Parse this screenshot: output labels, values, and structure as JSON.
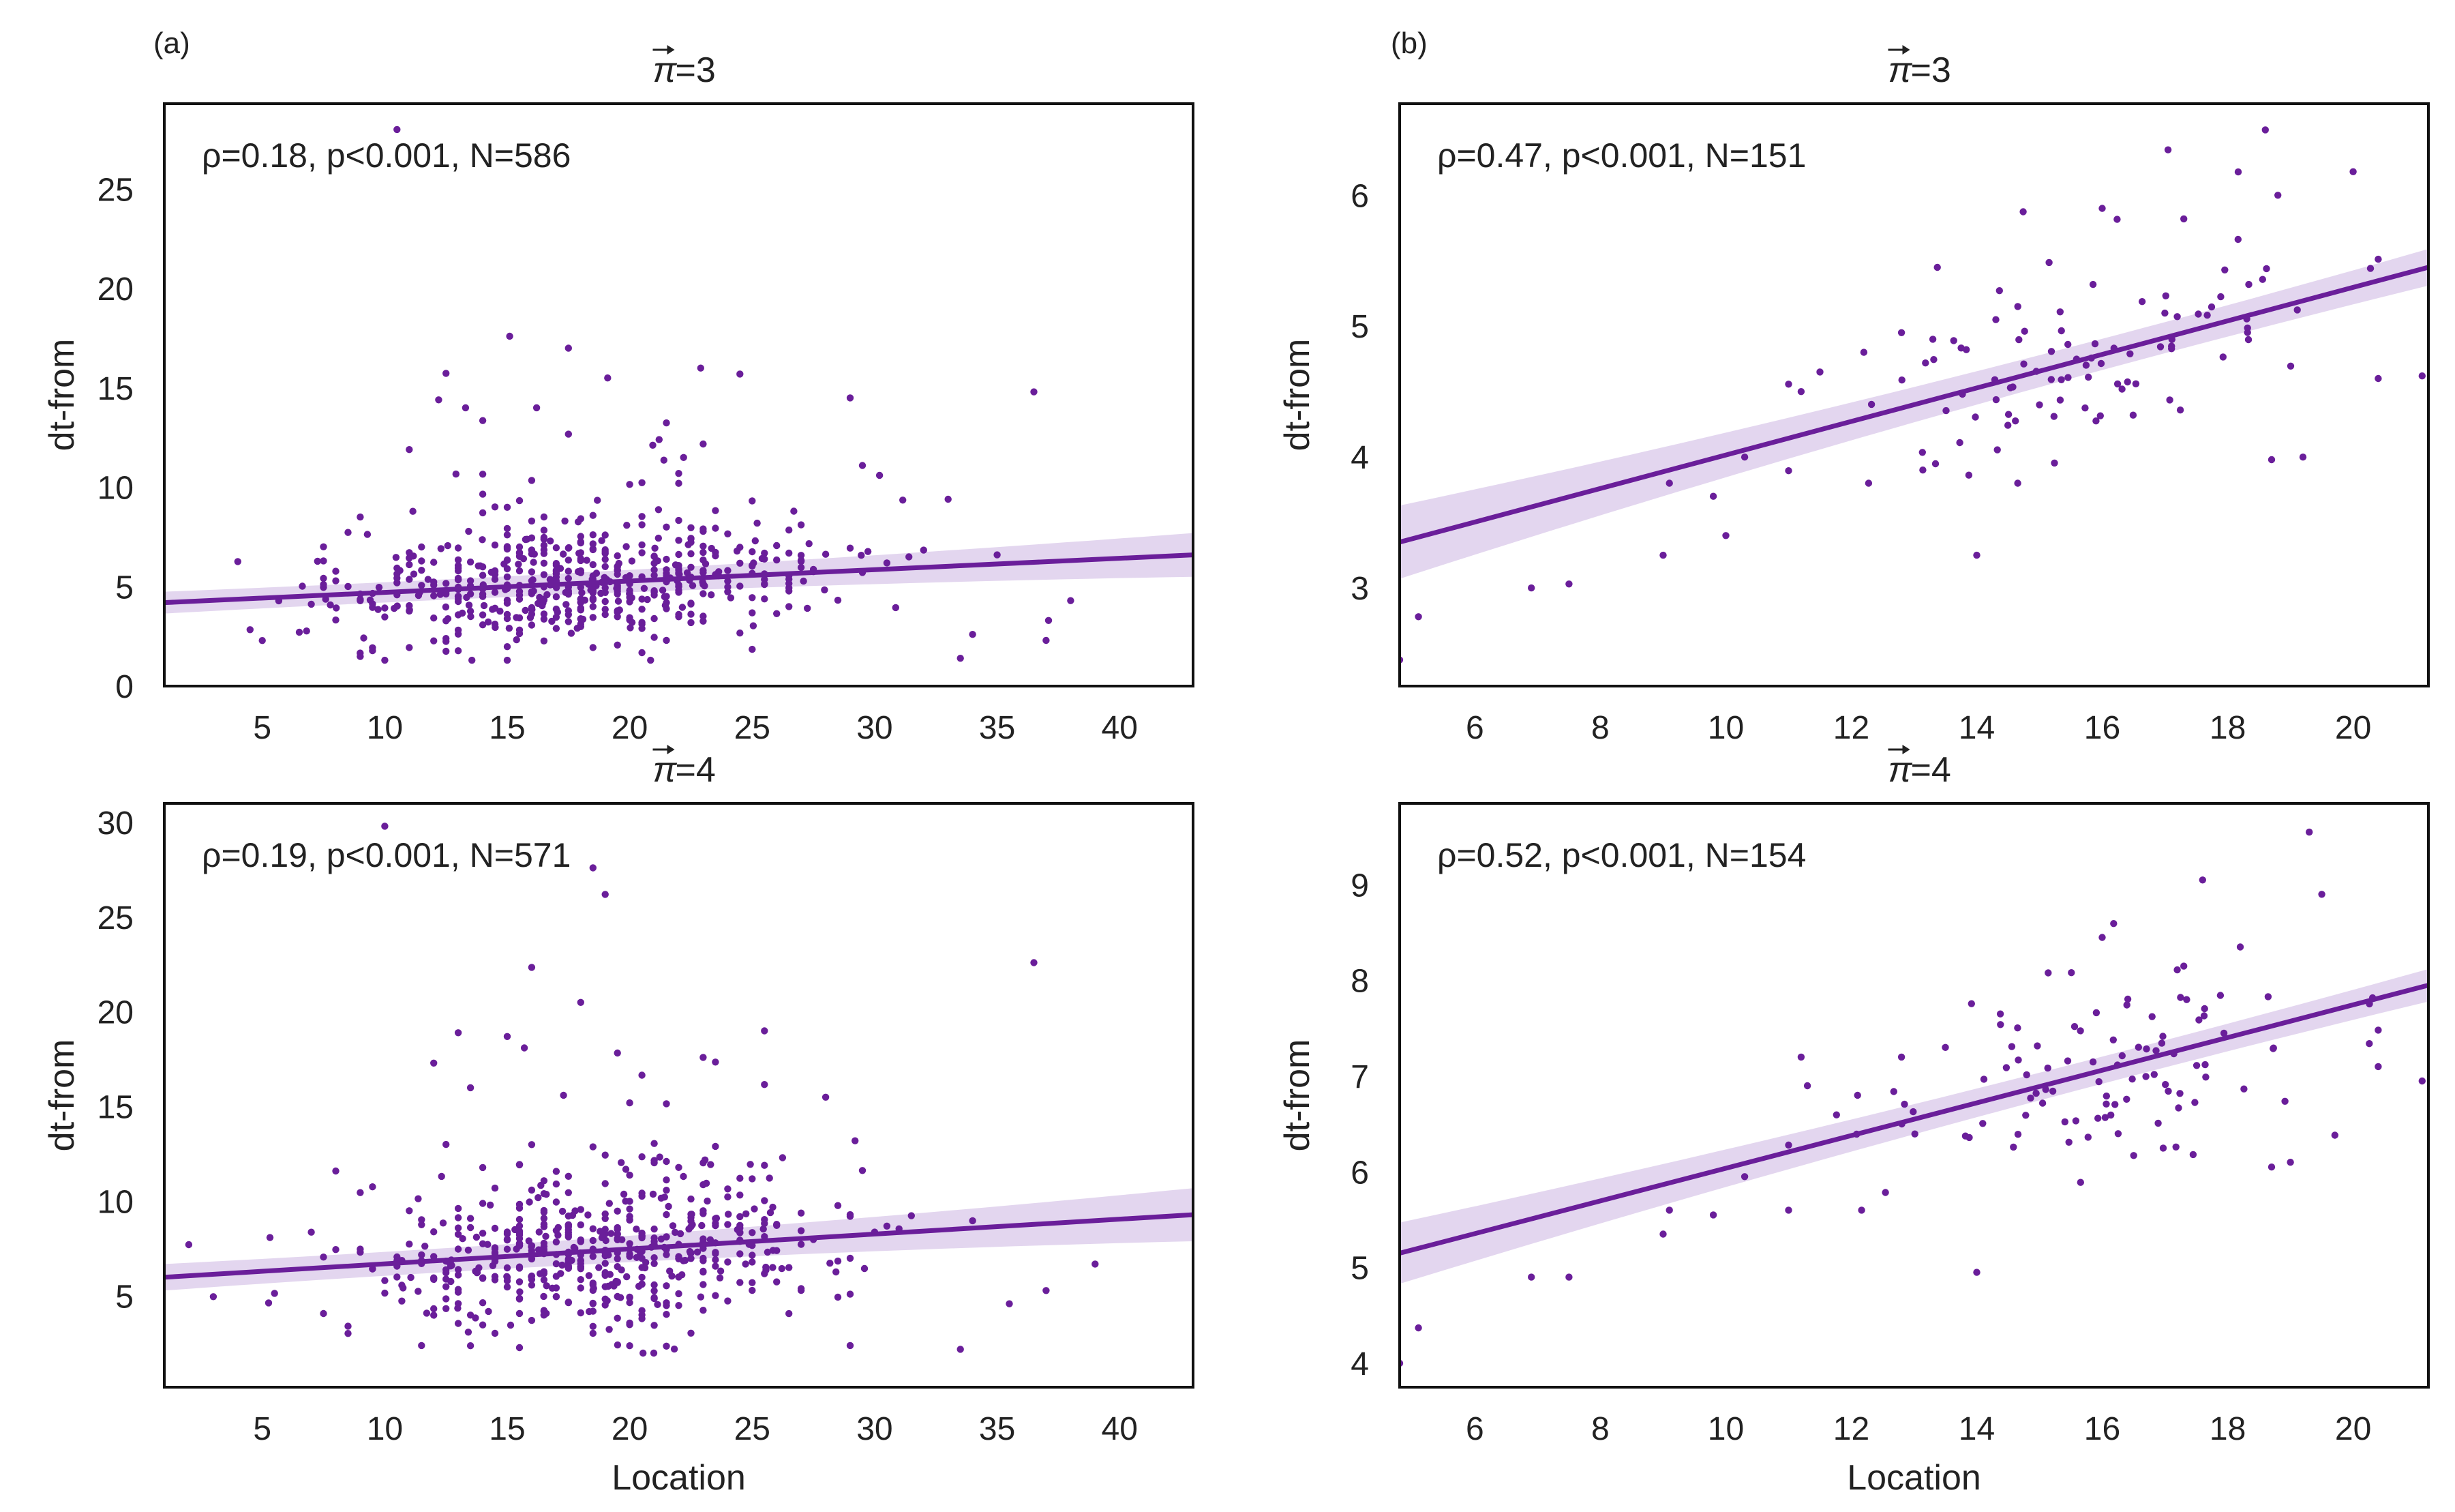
{
  "colors": {
    "point": "#6a1e9a",
    "line": "#6a1e9a",
    "band": "#d9c8ea",
    "frame": "#111111",
    "text": "#222222"
  },
  "panel_labels": [
    "(a)",
    "(b)"
  ],
  "chart_data": [
    {
      "id": "a-top",
      "type": "scatter",
      "title_vec": "π",
      "title_eq": "=3",
      "stat": "ρ=0.18, p<0.001, N=586",
      "xlabel": "",
      "ylabel": "dt-from",
      "xlim": [
        1,
        43
      ],
      "ylim": [
        0,
        29.3
      ],
      "xticks": [
        5,
        10,
        15,
        20,
        25,
        30,
        35,
        40
      ],
      "yticks": [
        0,
        5,
        10,
        15,
        20,
        25
      ],
      "fit": {
        "x": [
          1,
          43
        ],
        "y": [
          4.2,
          6.6
        ],
        "ci_ends": [
          0.55,
          1.1
        ],
        "ci_mid": 0.35
      },
      "cloud": {
        "n": 586,
        "xmean": 18,
        "xsd": 5,
        "xmin": 1,
        "xmax": 38,
        "ymean": 5.2,
        "ysd": 1.6,
        "ymin": 1.3,
        "seed": 11
      },
      "points": [
        [
          10.5,
          28.0
        ],
        [
          15.1,
          17.6
        ],
        [
          17.5,
          17.0
        ],
        [
          19.1,
          15.5
        ],
        [
          22.9,
          16.0
        ],
        [
          24.5,
          15.7
        ],
        [
          36.5,
          14.8
        ],
        [
          29.0,
          14.5
        ],
        [
          12.2,
          14.4
        ],
        [
          13.3,
          14.0
        ],
        [
          16.2,
          14.0
        ],
        [
          11.0,
          11.9
        ],
        [
          21.2,
          12.4
        ],
        [
          22.2,
          11.5
        ],
        [
          29.5,
          11.1
        ],
        [
          30.2,
          10.6
        ],
        [
          33.0,
          9.4
        ],
        [
          26.7,
          8.8
        ],
        [
          31.4,
          6.5
        ],
        [
          35.0,
          6.6
        ],
        [
          38.0,
          4.3
        ],
        [
          37.1,
          3.3
        ],
        [
          37.0,
          2.3
        ],
        [
          33.5,
          1.4
        ],
        [
          34.0,
          2.6
        ]
      ]
    },
    {
      "id": "a-bottom",
      "type": "scatter",
      "title_vec": "π",
      "title_eq": "=4",
      "stat": "ρ=0.19, p<0.001, N=571",
      "xlabel": "Location",
      "ylabel": "dt-from",
      "xlim": [
        1,
        43
      ],
      "ylim": [
        0.2,
        31
      ],
      "xticks": [
        5,
        10,
        15,
        20,
        25,
        30,
        35,
        40
      ],
      "yticks": [
        5,
        10,
        15,
        20,
        25,
        30
      ],
      "fit": {
        "x": [
          1,
          43
        ],
        "y": [
          6.0,
          9.3
        ],
        "ci_ends": [
          0.7,
          1.4
        ],
        "ci_mid": 0.4
      },
      "cloud": {
        "n": 571,
        "xmean": 18,
        "xsd": 5,
        "xmin": 1,
        "xmax": 38,
        "ymean": 7.2,
        "ysd": 2.0,
        "ymin": 2.0,
        "seed": 23
      },
      "points": [
        [
          10.0,
          29.8
        ],
        [
          18.5,
          27.6
        ],
        [
          19.0,
          26.2
        ],
        [
          36.5,
          22.6
        ],
        [
          18.0,
          20.5
        ],
        [
          13.0,
          18.9
        ],
        [
          15.0,
          18.7
        ],
        [
          25.5,
          19.0
        ],
        [
          15.7,
          18.1
        ],
        [
          23.0,
          17.6
        ],
        [
          12.0,
          17.3
        ],
        [
          13.5,
          16.0
        ],
        [
          17.3,
          15.6
        ],
        [
          20.0,
          15.2
        ],
        [
          28.0,
          15.5
        ],
        [
          29.2,
          13.2
        ],
        [
          16.0,
          13.0
        ],
        [
          37.0,
          5.3
        ],
        [
          35.5,
          4.6
        ],
        [
          39.0,
          6.7
        ],
        [
          33.5,
          2.2
        ],
        [
          29.0,
          2.4
        ]
      ]
    },
    {
      "id": "b-top",
      "type": "scatter",
      "title_vec": "π",
      "title_eq": "=3",
      "stat": "ρ=0.47, p<0.001, N=151",
      "xlabel": "",
      "ylabel": "dt-from",
      "xlim": [
        4.8,
        21.2
      ],
      "ylim": [
        2.25,
        6.7
      ],
      "xticks": [
        6,
        8,
        10,
        12,
        14,
        16,
        18,
        20
      ],
      "yticks": [
        3,
        4,
        5,
        6
      ],
      "fit": {
        "x": [
          4.8,
          21.2
        ],
        "y": [
          3.35,
          5.45
        ],
        "ci_ends": [
          0.28,
          0.14
        ],
        "ci_mid": 0.06
      },
      "cloud": {
        "n": 120,
        "xmean": 15.8,
        "xsd": 2.2,
        "xmin": 11,
        "xmax": 20.4,
        "ymean": 4.7,
        "ysd": 0.38,
        "ymin": 3.8,
        "seed": 37
      },
      "points": [
        [
          4.8,
          2.45
        ],
        [
          5.1,
          2.78
        ],
        [
          6.9,
          3.0
        ],
        [
          7.5,
          3.03
        ],
        [
          9.0,
          3.25
        ],
        [
          9.1,
          3.8
        ],
        [
          9.8,
          3.7
        ],
        [
          10.0,
          3.4
        ],
        [
          10.3,
          4.0
        ],
        [
          14.0,
          3.25
        ],
        [
          18.6,
          6.5
        ],
        [
          20.0,
          6.18
        ],
        [
          18.8,
          6.0
        ],
        [
          16.0,
          5.9
        ],
        [
          17.3,
          5.82
        ],
        [
          21.1,
          4.62
        ],
        [
          20.4,
          4.6
        ],
        [
          19.2,
          4.0
        ],
        [
          18.7,
          3.98
        ],
        [
          12.2,
          4.8
        ],
        [
          11.5,
          4.65
        ],
        [
          11.2,
          4.5
        ],
        [
          12.8,
          4.95
        ],
        [
          13.3,
          4.9
        ]
      ]
    },
    {
      "id": "b-bottom",
      "type": "scatter",
      "title_vec": "π",
      "title_eq": "=4",
      "stat": "ρ=0.52, p<0.001, N=154",
      "xlabel": "Location",
      "ylabel": "dt-from",
      "xlim": [
        4.8,
        21.2
      ],
      "ylim": [
        3.75,
        9.85
      ],
      "xticks": [
        6,
        8,
        10,
        12,
        14,
        16,
        18,
        20
      ],
      "yticks": [
        4,
        5,
        6,
        7,
        8,
        9
      ],
      "fit": {
        "x": [
          4.8,
          21.2
        ],
        "y": [
          5.15,
          7.95
        ],
        "ci_ends": [
          0.32,
          0.17
        ],
        "ci_mid": 0.07
      },
      "cloud": {
        "n": 125,
        "xmean": 15.8,
        "xsd": 2.2,
        "xmin": 11,
        "xmax": 20.4,
        "ymean": 7.0,
        "ysd": 0.55,
        "ymin": 5.6,
        "seed": 53
      },
      "points": [
        [
          4.8,
          4.0
        ],
        [
          5.1,
          4.37
        ],
        [
          6.9,
          4.9
        ],
        [
          7.5,
          4.9
        ],
        [
          9.0,
          5.35
        ],
        [
          9.1,
          5.6
        ],
        [
          9.8,
          5.55
        ],
        [
          10.3,
          5.95
        ],
        [
          14.0,
          4.95
        ],
        [
          19.3,
          9.55
        ],
        [
          19.5,
          8.9
        ],
        [
          17.6,
          9.05
        ],
        [
          18.2,
          8.35
        ],
        [
          16.0,
          8.45
        ],
        [
          17.3,
          8.15
        ],
        [
          21.1,
          6.95
        ],
        [
          20.4,
          7.1
        ],
        [
          19.0,
          6.1
        ],
        [
          18.7,
          6.05
        ],
        [
          11.2,
          7.2
        ],
        [
          11.3,
          6.9
        ],
        [
          12.1,
          6.8
        ],
        [
          12.8,
          7.2
        ],
        [
          13.5,
          7.3
        ]
      ]
    }
  ]
}
